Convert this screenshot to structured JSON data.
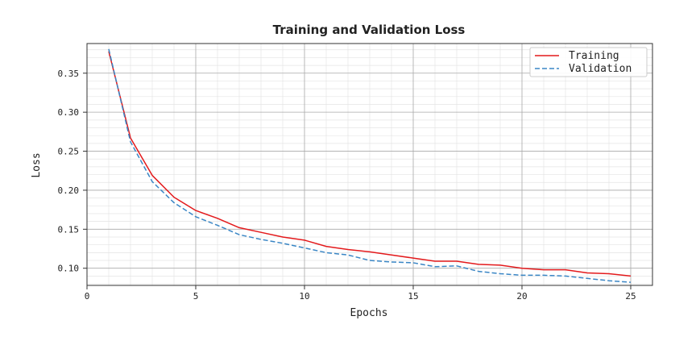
{
  "chart_data": {
    "type": "line",
    "title": "Training and Validation Loss",
    "xlabel": "Epochs",
    "ylabel": "Loss",
    "xlim": [
      0,
      26
    ],
    "ylim": [
      0.078,
      0.388
    ],
    "xticks": [
      0,
      5,
      10,
      15,
      20,
      25
    ],
    "yticks": [
      0.1,
      0.15,
      0.2,
      0.25,
      0.3,
      0.35
    ],
    "xtick_labels": [
      "0",
      "5",
      "10",
      "15",
      "20",
      "25"
    ],
    "ytick_labels": [
      "0.10",
      "0.15",
      "0.20",
      "0.25",
      "0.30",
      "0.35"
    ],
    "x_minor_step": 1,
    "y_minor_step": 0.01,
    "grid": true,
    "legend_position": "top-right",
    "x": [
      1,
      2,
      3,
      4,
      5,
      6,
      7,
      8,
      9,
      10,
      11,
      12,
      13,
      14,
      15,
      16,
      17,
      18,
      19,
      20,
      21,
      22,
      23,
      24,
      25
    ],
    "series": [
      {
        "name": "Training",
        "color": "#e31a1c",
        "style": "solid",
        "values": [
          0.378,
          0.267,
          0.219,
          0.191,
          0.174,
          0.164,
          0.152,
          0.146,
          0.14,
          0.136,
          0.128,
          0.124,
          0.121,
          0.117,
          0.113,
          0.109,
          0.109,
          0.105,
          0.104,
          0.1,
          0.098,
          0.098,
          0.094,
          0.093,
          0.09
        ]
      },
      {
        "name": "Validation",
        "color": "#3a86c5",
        "style": "dashed",
        "values": [
          0.381,
          0.262,
          0.211,
          0.184,
          0.166,
          0.155,
          0.143,
          0.137,
          0.132,
          0.126,
          0.12,
          0.117,
          0.11,
          0.108,
          0.107,
          0.102,
          0.103,
          0.096,
          0.093,
          0.091,
          0.091,
          0.09,
          0.087,
          0.084,
          0.082
        ]
      }
    ]
  }
}
